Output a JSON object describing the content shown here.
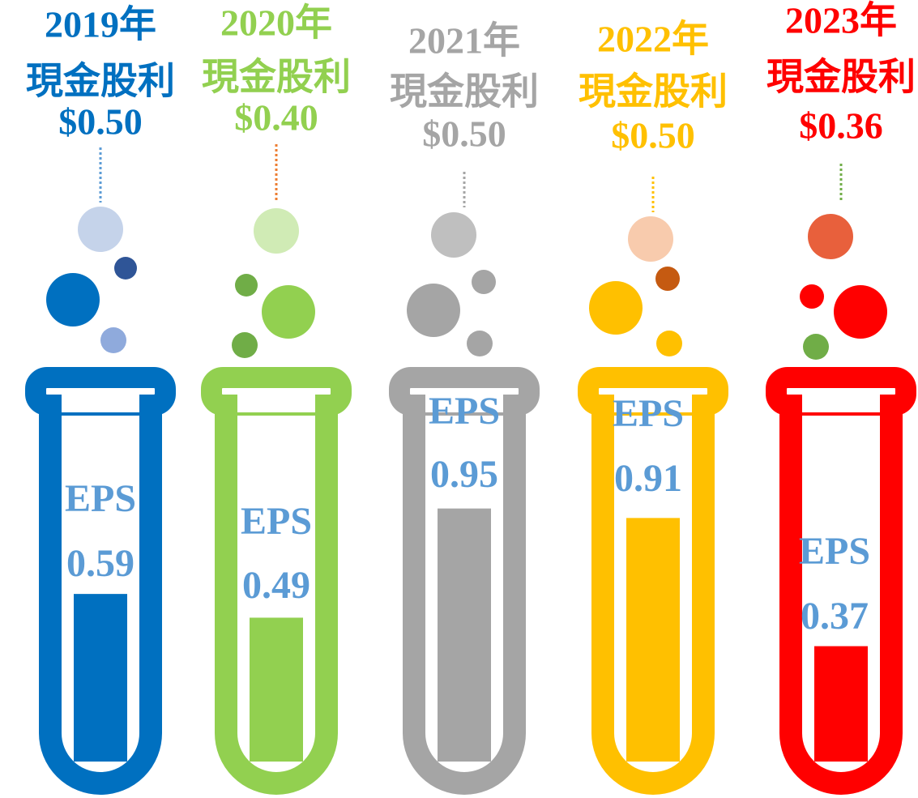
{
  "chart_data": {
    "type": "bar",
    "categories": [
      "2019年",
      "2020年",
      "2021年",
      "2022年",
      "2023年"
    ],
    "colors": [
      "#0070c0",
      "#92d050",
      "#a5a5a5",
      "#ffc000",
      "#ff0000"
    ],
    "series": [
      {
        "name": "EPS",
        "color": "#5b9bd5",
        "values": [
          0.59,
          0.49,
          0.95,
          0.91,
          0.37
        ]
      },
      {
        "name": "現金股利",
        "values": [
          0.5,
          0.4,
          0.5,
          0.5,
          0.36
        ],
        "value_labels": [
          "$0.50",
          "$0.40",
          "$0.50",
          "$0.50",
          "$0.36"
        ]
      }
    ]
  }
}
